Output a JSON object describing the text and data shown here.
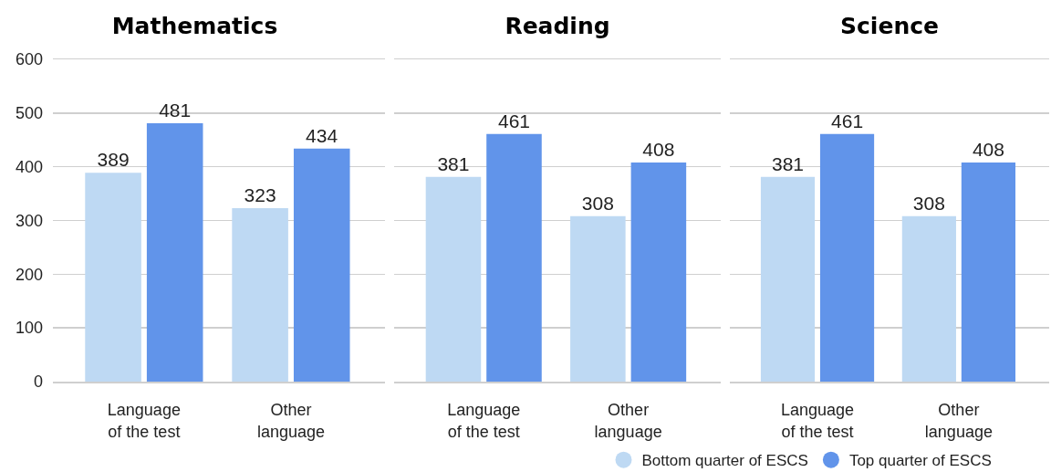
{
  "chart_data": [
    {
      "type": "bar",
      "title": "Mathematics",
      "categories": [
        "Language of the test",
        "Other language"
      ],
      "series": [
        {
          "color": "#bed9f3",
          "values": [
            389,
            323
          ]
        },
        {
          "color": "#6194ea",
          "values": [
            481,
            434
          ]
        }
      ],
      "ylim": [
        0,
        600
      ],
      "yticks": [
        0,
        100,
        200,
        300,
        400,
        500,
        600
      ],
      "grid": "y",
      "data_labels": true
    },
    {
      "type": "bar",
      "title": "Reading",
      "categories": [
        "Language of the test",
        "Other language"
      ],
      "series": [
        {
          "color": "#bed9f3",
          "values": [
            381,
            308
          ]
        },
        {
          "color": "#6194ea",
          "values": [
            461,
            408
          ]
        }
      ],
      "ylim": [
        0,
        600
      ],
      "yticks": [
        0,
        100,
        200,
        300,
        400,
        500,
        600
      ],
      "grid": "y",
      "data_labels": true,
      "tick_labels": "x"
    },
    {
      "type": "bar",
      "title": "Science",
      "categories": [
        "Language of the test",
        "Other language"
      ],
      "series": [
        {
          "name": "Bottom quarter of ESCS",
          "color": "#bed9f3",
          "values": [
            381,
            308
          ]
        },
        {
          "name": "Top quarter of ESCS",
          "color": "#6194ea",
          "values": [
            461,
            408
          ]
        }
      ],
      "ylim": [
        0,
        600
      ],
      "yticks": [
        0,
        100,
        200,
        300,
        400,
        500,
        600
      ],
      "grid": "y",
      "data_labels": true,
      "tick_labels": "x",
      "legend": "bottom left"
    }
  ]
}
